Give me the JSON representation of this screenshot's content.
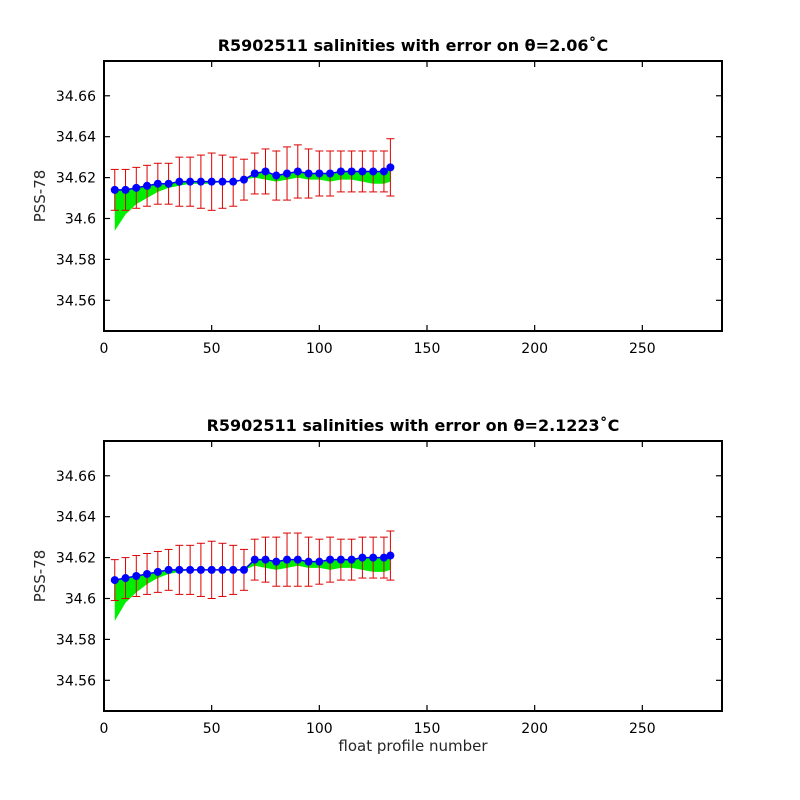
{
  "figure": {
    "xlabel": "float profile number"
  },
  "chart_data": [
    {
      "type": "scatter",
      "title": "R5902511 salinities with error on θ=2.06˚C",
      "ylabel": "PSS-78",
      "xlim": [
        0,
        287
      ],
      "ylim": [
        34.545,
        34.677
      ],
      "xticks": [
        0,
        50,
        100,
        150,
        200,
        250
      ],
      "yticks": [
        34.56,
        34.58,
        34.6,
        34.62,
        34.64,
        34.66
      ],
      "ytick_labels": [
        "34.56",
        "34.58",
        "34.6",
        "34.62",
        "34.64",
        "34.66"
      ],
      "colors": {
        "calibrated": "#0000ff",
        "error_bars": "#dd0000",
        "raw_band": "#00ee00"
      },
      "series": [
        {
          "kind": "calibrated_with_error",
          "profiles": [
            5,
            10,
            15,
            20,
            25,
            30,
            35,
            40,
            45,
            50,
            55,
            60,
            65,
            70,
            75,
            80,
            85,
            90,
            95,
            100,
            105,
            110,
            115,
            120,
            125,
            130,
            133
          ],
          "values": [
            34.614,
            34.614,
            34.615,
            34.616,
            34.617,
            34.617,
            34.618,
            34.618,
            34.618,
            34.618,
            34.618,
            34.618,
            34.619,
            34.622,
            34.623,
            34.621,
            34.622,
            34.623,
            34.622,
            34.622,
            34.622,
            34.623,
            34.623,
            34.623,
            34.623,
            34.623,
            34.625
          ],
          "error": [
            0.01,
            0.01,
            0.01,
            0.01,
            0.01,
            0.01,
            0.012,
            0.012,
            0.013,
            0.014,
            0.013,
            0.012,
            0.01,
            0.01,
            0.011,
            0.012,
            0.013,
            0.013,
            0.012,
            0.011,
            0.011,
            0.01,
            0.01,
            0.01,
            0.01,
            0.01,
            0.014
          ]
        },
        {
          "kind": "raw",
          "profiles": [
            5,
            10,
            15,
            20,
            25,
            30,
            35,
            40,
            45,
            50,
            55,
            60,
            65,
            70,
            75,
            80,
            85,
            90,
            95,
            100,
            105,
            110,
            115,
            120,
            125,
            130,
            133
          ],
          "values": [
            34.594,
            34.602,
            34.607,
            34.61,
            34.613,
            34.615,
            34.616,
            34.617,
            34.617,
            34.617,
            34.618,
            34.618,
            34.619,
            34.62,
            34.619,
            34.618,
            34.619,
            34.62,
            34.619,
            34.619,
            34.618,
            34.619,
            34.619,
            34.618,
            34.617,
            34.617,
            34.618
          ]
        }
      ]
    },
    {
      "type": "scatter",
      "title": "R5902511 salinities with error on θ=2.1223˚C",
      "ylabel": "PSS-78",
      "xlim": [
        0,
        287
      ],
      "ylim": [
        34.545,
        34.677
      ],
      "xticks": [
        0,
        50,
        100,
        150,
        200,
        250
      ],
      "yticks": [
        34.56,
        34.58,
        34.6,
        34.62,
        34.64,
        34.66
      ],
      "ytick_labels": [
        "34.56",
        "34.58",
        "34.6",
        "34.62",
        "34.64",
        "34.66"
      ],
      "colors": {
        "calibrated": "#0000ff",
        "error_bars": "#dd0000",
        "raw_band": "#00ee00"
      },
      "series": [
        {
          "kind": "calibrated_with_error",
          "profiles": [
            5,
            10,
            15,
            20,
            25,
            30,
            35,
            40,
            45,
            50,
            55,
            60,
            65,
            70,
            75,
            80,
            85,
            90,
            95,
            100,
            105,
            110,
            115,
            120,
            125,
            130,
            133
          ],
          "values": [
            34.609,
            34.61,
            34.611,
            34.612,
            34.613,
            34.614,
            34.614,
            34.614,
            34.614,
            34.614,
            34.614,
            34.614,
            34.614,
            34.619,
            34.619,
            34.618,
            34.619,
            34.619,
            34.618,
            34.618,
            34.619,
            34.619,
            34.619,
            34.62,
            34.62,
            34.62,
            34.621
          ],
          "error": [
            0.01,
            0.01,
            0.01,
            0.01,
            0.01,
            0.01,
            0.012,
            0.012,
            0.013,
            0.014,
            0.013,
            0.012,
            0.01,
            0.01,
            0.011,
            0.012,
            0.013,
            0.013,
            0.012,
            0.011,
            0.011,
            0.01,
            0.01,
            0.01,
            0.01,
            0.01,
            0.012
          ]
        },
        {
          "kind": "raw",
          "profiles": [
            5,
            10,
            15,
            20,
            25,
            30,
            35,
            40,
            45,
            50,
            55,
            60,
            65,
            70,
            75,
            80,
            85,
            90,
            95,
            100,
            105,
            110,
            115,
            120,
            125,
            130,
            133
          ],
          "values": [
            34.589,
            34.598,
            34.603,
            34.607,
            34.61,
            34.612,
            34.613,
            34.614,
            34.614,
            34.614,
            34.614,
            34.614,
            34.614,
            34.616,
            34.615,
            34.614,
            34.615,
            34.616,
            34.615,
            34.615,
            34.614,
            34.615,
            34.615,
            34.614,
            34.613,
            34.613,
            34.614
          ]
        }
      ]
    }
  ]
}
